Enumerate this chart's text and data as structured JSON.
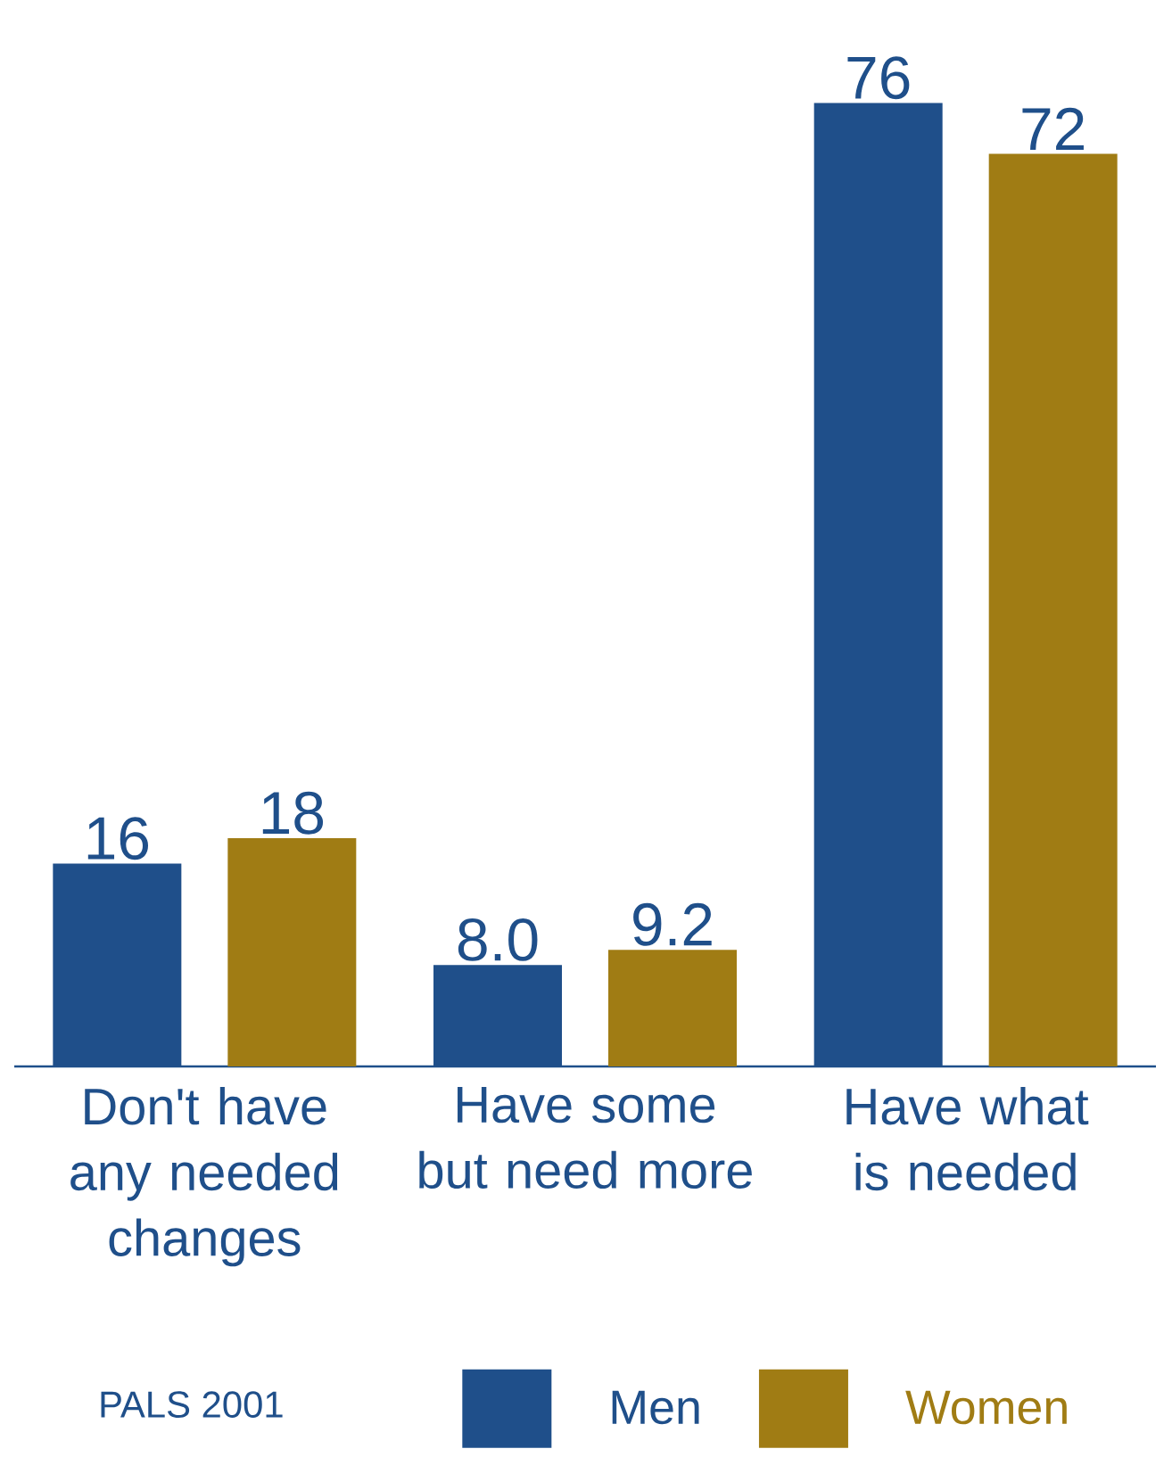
{
  "chart_data": {
    "type": "bar",
    "categories": [
      "Don't have any needed changes",
      "Have some but need more",
      "Have what is needed"
    ],
    "series": [
      {
        "name": "Men",
        "color": "#1f4f8a",
        "values": [
          16,
          8.0,
          76
        ],
        "value_labels": [
          "16",
          "8.0",
          "76"
        ]
      },
      {
        "name": "Women",
        "color": "#a07c14",
        "values": [
          18,
          9.2,
          72
        ],
        "value_labels": [
          "18",
          "9.2",
          "72"
        ]
      }
    ],
    "legend": "bottom",
    "annotations": [
      "PALS 2001"
    ]
  }
}
